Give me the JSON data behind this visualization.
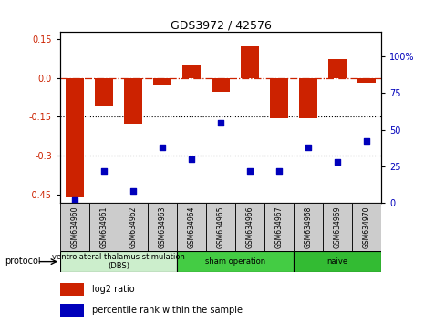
{
  "title": "GDS3972 / 42576",
  "samples": [
    "GSM634960",
    "GSM634961",
    "GSM634962",
    "GSM634963",
    "GSM634964",
    "GSM634965",
    "GSM634966",
    "GSM634967",
    "GSM634968",
    "GSM634969",
    "GSM634970"
  ],
  "log2_ratio": [
    -0.46,
    -0.105,
    -0.175,
    -0.025,
    0.05,
    -0.055,
    0.12,
    -0.155,
    -0.155,
    0.07,
    -0.02
  ],
  "percentile_rank": [
    2,
    22,
    8,
    38,
    30,
    55,
    22,
    22,
    38,
    28,
    42
  ],
  "bar_color": "#CC2200",
  "dot_color": "#0000BB",
  "left_ylim": [
    -0.48,
    0.175
  ],
  "left_yticks": [
    0.15,
    0.0,
    -0.15,
    -0.3,
    -0.45
  ],
  "right_ylim": [
    0,
    116.67
  ],
  "right_yticks": [
    0,
    25,
    50,
    75,
    100
  ],
  "right_tick_labels": [
    "0",
    "25",
    "50",
    "75",
    "100%"
  ],
  "protocol_groups": [
    {
      "label": "ventrolateral thalamus stimulation\n(DBS)",
      "indices": [
        0,
        1,
        2,
        3
      ],
      "color": "#CCEECC"
    },
    {
      "label": "sham operation",
      "indices": [
        4,
        5,
        6,
        7
      ],
      "color": "#44CC44"
    },
    {
      "label": "naive",
      "indices": [
        8,
        9,
        10
      ],
      "color": "#33BB33"
    }
  ],
  "sample_box_color": "#CCCCCC",
  "legend_items": [
    {
      "label": "log2 ratio",
      "color": "#CC2200"
    },
    {
      "label": "percentile rank within the sample",
      "color": "#0000BB"
    }
  ],
  "protocol_label": "protocol",
  "hline_y": 0.0,
  "dotted_lines": [
    -0.15,
    -0.3
  ]
}
